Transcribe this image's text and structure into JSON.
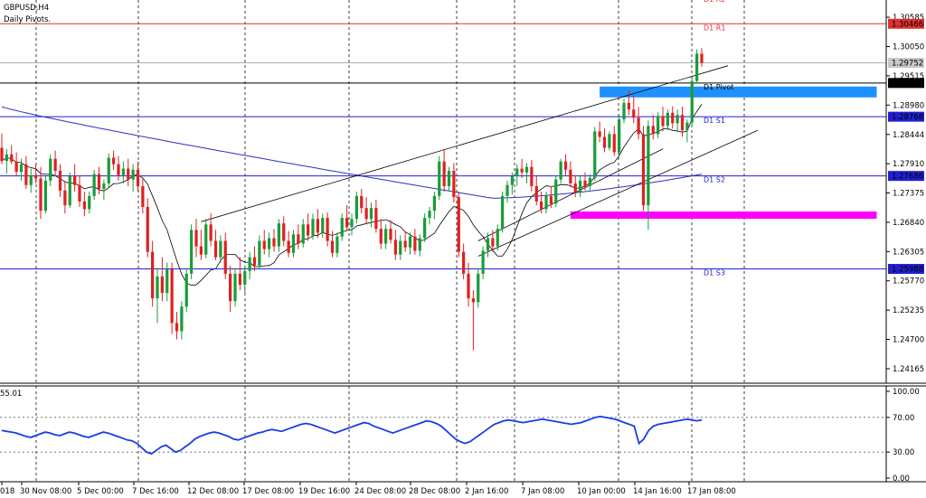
{
  "header": {
    "symbol": "GBPUSD,H4",
    "indicator_name": "Daily Pivots."
  },
  "oscillator": {
    "value_label": "55.01",
    "levels": [
      "100.00",
      "70.00",
      "30.00",
      "0.00"
    ]
  },
  "chart_data": {
    "type": "candlestick",
    "symbol": "GBPUSD",
    "timeframe": "H4",
    "ylim": [
      1.239,
      1.309
    ],
    "price_ticks": [
      "1.30585",
      "1.30050",
      "1.29515",
      "1.28980",
      "1.28444",
      "1.27910",
      "1.27375",
      "1.26840",
      "1.26305",
      "1.25770",
      "1.25235",
      "1.24700",
      "1.24165"
    ],
    "x_tick_labels": [
      "018",
      "30 Nov 08:00",
      "5 Dec 00:00",
      "7 Dec 16:00",
      "12 Dec 08:00",
      "17 Dec 08:00",
      "19 Dec 16:00",
      "24 Dec 08:00",
      "28 Dec 08:00",
      "2 Jan 16:00",
      "7 Jan 08:00",
      "10 Jan 00:00",
      "14 Jan 16:00",
      "17 Jan 08:00"
    ],
    "pivot_levels": [
      {
        "name": "D1 R2",
        "value": 1.3098,
        "price_label": "",
        "color": "#e03030"
      },
      {
        "name": "D1 R1",
        "value": 1.30466,
        "price_label": "1.30466",
        "color": "#e03030"
      },
      {
        "name": "D1 Pivot",
        "value": 1.29384,
        "price_label": "1.29384",
        "color": "#000000"
      },
      {
        "name": "D1 S1",
        "value": 1.28768,
        "price_label": "1.28768",
        "color": "#2020d0"
      },
      {
        "name": "D1 S2",
        "value": 1.27686,
        "price_label": "1.27686",
        "color": "#2020d0"
      },
      {
        "name": "D1 S3",
        "value": 1.25988,
        "price_label": "1.25988",
        "color": "#2020d0"
      }
    ],
    "current_price": {
      "value": 1.29752,
      "label": "1.29752"
    },
    "zones": [
      {
        "name": "resistance-zone",
        "color": "#1e90ff",
        "price": 1.2922,
        "from_index": 123,
        "to_index": 180
      },
      {
        "name": "support-zone",
        "color": "#ff00ff",
        "price": 1.2697,
        "from_index": 117,
        "to_index": 180
      }
    ],
    "candles": [
      {
        "o": 1.282,
        "h": 1.2846,
        "l": 1.279,
        "c": 1.2796
      },
      {
        "o": 1.2796,
        "h": 1.2818,
        "l": 1.2773,
        "c": 1.2808
      },
      {
        "o": 1.2808,
        "h": 1.2825,
        "l": 1.279,
        "c": 1.2795
      },
      {
        "o": 1.2795,
        "h": 1.2812,
        "l": 1.2768,
        "c": 1.2776
      },
      {
        "o": 1.2776,
        "h": 1.28,
        "l": 1.276,
        "c": 1.279
      },
      {
        "o": 1.279,
        "h": 1.2805,
        "l": 1.2745,
        "c": 1.2752
      },
      {
        "o": 1.2752,
        "h": 1.2782,
        "l": 1.2738,
        "c": 1.277
      },
      {
        "o": 1.277,
        "h": 1.279,
        "l": 1.2755,
        "c": 1.2764
      },
      {
        "o": 1.2764,
        "h": 1.2785,
        "l": 1.269,
        "c": 1.2705
      },
      {
        "o": 1.2705,
        "h": 1.277,
        "l": 1.27,
        "c": 1.276
      },
      {
        "o": 1.276,
        "h": 1.2808,
        "l": 1.275,
        "c": 1.28
      },
      {
        "o": 1.28,
        "h": 1.2815,
        "l": 1.277,
        "c": 1.2778
      },
      {
        "o": 1.2778,
        "h": 1.279,
        "l": 1.273,
        "c": 1.2742
      },
      {
        "o": 1.2742,
        "h": 1.276,
        "l": 1.27,
        "c": 1.2715
      },
      {
        "o": 1.2715,
        "h": 1.2775,
        "l": 1.271,
        "c": 1.2768
      },
      {
        "o": 1.2768,
        "h": 1.279,
        "l": 1.274,
        "c": 1.2752
      },
      {
        "o": 1.2752,
        "h": 1.277,
        "l": 1.2712,
        "c": 1.2722
      },
      {
        "o": 1.2722,
        "h": 1.274,
        "l": 1.2695,
        "c": 1.2708
      },
      {
        "o": 1.2708,
        "h": 1.274,
        "l": 1.27,
        "c": 1.2732
      },
      {
        "o": 1.2732,
        "h": 1.278,
        "l": 1.2725,
        "c": 1.2772
      },
      {
        "o": 1.2772,
        "h": 1.2785,
        "l": 1.2735,
        "c": 1.2745
      },
      {
        "o": 1.2745,
        "h": 1.2762,
        "l": 1.2725,
        "c": 1.2755
      },
      {
        "o": 1.2755,
        "h": 1.281,
        "l": 1.2748,
        "c": 1.2802
      },
      {
        "o": 1.2802,
        "h": 1.2815,
        "l": 1.278,
        "c": 1.279
      },
      {
        "o": 1.279,
        "h": 1.2805,
        "l": 1.276,
        "c": 1.277
      },
      {
        "o": 1.277,
        "h": 1.2795,
        "l": 1.2755,
        "c": 1.2782
      },
      {
        "o": 1.2782,
        "h": 1.28,
        "l": 1.275,
        "c": 1.2762
      },
      {
        "o": 1.2762,
        "h": 1.279,
        "l": 1.274,
        "c": 1.278
      },
      {
        "o": 1.278,
        "h": 1.2795,
        "l": 1.274,
        "c": 1.275
      },
      {
        "o": 1.275,
        "h": 1.2765,
        "l": 1.27,
        "c": 1.2712
      },
      {
        "o": 1.2712,
        "h": 1.2728,
        "l": 1.262,
        "c": 1.263
      },
      {
        "o": 1.263,
        "h": 1.265,
        "l": 1.253,
        "c": 1.2545
      },
      {
        "o": 1.2545,
        "h": 1.26,
        "l": 1.25,
        "c": 1.2585
      },
      {
        "o": 1.2585,
        "h": 1.262,
        "l": 1.254,
        "c": 1.2555
      },
      {
        "o": 1.2555,
        "h": 1.261,
        "l": 1.254,
        "c": 1.2598
      },
      {
        "o": 1.2598,
        "h": 1.261,
        "l": 1.248,
        "c": 1.25
      },
      {
        "o": 1.25,
        "h": 1.252,
        "l": 1.247,
        "c": 1.2485
      },
      {
        "o": 1.2485,
        "h": 1.254,
        "l": 1.247,
        "c": 1.253
      },
      {
        "o": 1.253,
        "h": 1.26,
        "l": 1.252,
        "c": 1.259
      },
      {
        "o": 1.259,
        "h": 1.268,
        "l": 1.258,
        "c": 1.267
      },
      {
        "o": 1.267,
        "h": 1.269,
        "l": 1.262,
        "c": 1.264
      },
      {
        "o": 1.264,
        "h": 1.267,
        "l": 1.2615,
        "c": 1.2625
      },
      {
        "o": 1.2625,
        "h": 1.269,
        "l": 1.2618,
        "c": 1.268
      },
      {
        "o": 1.268,
        "h": 1.27,
        "l": 1.264,
        "c": 1.265
      },
      {
        "o": 1.265,
        "h": 1.267,
        "l": 1.2615,
        "c": 1.262
      },
      {
        "o": 1.262,
        "h": 1.266,
        "l": 1.261,
        "c": 1.265
      },
      {
        "o": 1.265,
        "h": 1.2665,
        "l": 1.258,
        "c": 1.259
      },
      {
        "o": 1.259,
        "h": 1.2605,
        "l": 1.252,
        "c": 1.254
      },
      {
        "o": 1.254,
        "h": 1.26,
        "l": 1.253,
        "c": 1.259
      },
      {
        "o": 1.259,
        "h": 1.262,
        "l": 1.256,
        "c": 1.257
      },
      {
        "o": 1.257,
        "h": 1.2605,
        "l": 1.2555,
        "c": 1.2595
      },
      {
        "o": 1.2595,
        "h": 1.263,
        "l": 1.258,
        "c": 1.262
      },
      {
        "o": 1.262,
        "h": 1.264,
        "l": 1.2595,
        "c": 1.2605
      },
      {
        "o": 1.2605,
        "h": 1.266,
        "l": 1.2598,
        "c": 1.265
      },
      {
        "o": 1.265,
        "h": 1.267,
        "l": 1.2625,
        "c": 1.2635
      },
      {
        "o": 1.2635,
        "h": 1.2665,
        "l": 1.262,
        "c": 1.2655
      },
      {
        "o": 1.2655,
        "h": 1.2672,
        "l": 1.263,
        "c": 1.264
      },
      {
        "o": 1.264,
        "h": 1.269,
        "l": 1.263,
        "c": 1.2682
      },
      {
        "o": 1.2682,
        "h": 1.2695,
        "l": 1.264,
        "c": 1.265
      },
      {
        "o": 1.265,
        "h": 1.2668,
        "l": 1.262,
        "c": 1.2628
      },
      {
        "o": 1.2628,
        "h": 1.267,
        "l": 1.262,
        "c": 1.2662
      },
      {
        "o": 1.2662,
        "h": 1.268,
        "l": 1.2635,
        "c": 1.2645
      },
      {
        "o": 1.2645,
        "h": 1.269,
        "l": 1.2638,
        "c": 1.268
      },
      {
        "o": 1.268,
        "h": 1.27,
        "l": 1.265,
        "c": 1.266
      },
      {
        "o": 1.266,
        "h": 1.27,
        "l": 1.2652,
        "c": 1.269
      },
      {
        "o": 1.269,
        "h": 1.2708,
        "l": 1.2655,
        "c": 1.2665
      },
      {
        "o": 1.2665,
        "h": 1.27,
        "l": 1.2655,
        "c": 1.2692
      },
      {
        "o": 1.2692,
        "h": 1.2702,
        "l": 1.264,
        "c": 1.265
      },
      {
        "o": 1.265,
        "h": 1.2668,
        "l": 1.262,
        "c": 1.2628
      },
      {
        "o": 1.2628,
        "h": 1.2665,
        "l": 1.262,
        "c": 1.2658
      },
      {
        "o": 1.2658,
        "h": 1.27,
        "l": 1.265,
        "c": 1.2692
      },
      {
        "o": 1.2692,
        "h": 1.2715,
        "l": 1.2668,
        "c": 1.2675
      },
      {
        "o": 1.2675,
        "h": 1.27,
        "l": 1.266,
        "c": 1.269
      },
      {
        "o": 1.269,
        "h": 1.274,
        "l": 1.2682,
        "c": 1.2732
      },
      {
        "o": 1.2732,
        "h": 1.2745,
        "l": 1.27,
        "c": 1.271
      },
      {
        "o": 1.271,
        "h": 1.273,
        "l": 1.268,
        "c": 1.269
      },
      {
        "o": 1.269,
        "h": 1.272,
        "l": 1.2675,
        "c": 1.271
      },
      {
        "o": 1.271,
        "h": 1.2725,
        "l": 1.2665,
        "c": 1.2672
      },
      {
        "o": 1.2672,
        "h": 1.269,
        "l": 1.2635,
        "c": 1.2645
      },
      {
        "o": 1.2645,
        "h": 1.268,
        "l": 1.2635,
        "c": 1.2672
      },
      {
        "o": 1.2672,
        "h": 1.2688,
        "l": 1.2645,
        "c": 1.2652
      },
      {
        "o": 1.2652,
        "h": 1.267,
        "l": 1.2615,
        "c": 1.2625
      },
      {
        "o": 1.2625,
        "h": 1.266,
        "l": 1.2615,
        "c": 1.265
      },
      {
        "o": 1.265,
        "h": 1.2668,
        "l": 1.263,
        "c": 1.2638
      },
      {
        "o": 1.2638,
        "h": 1.2665,
        "l": 1.2625,
        "c": 1.2658
      },
      {
        "o": 1.2658,
        "h": 1.2672,
        "l": 1.2625,
        "c": 1.2632
      },
      {
        "o": 1.2632,
        "h": 1.2662,
        "l": 1.2622,
        "c": 1.2655
      },
      {
        "o": 1.2655,
        "h": 1.27,
        "l": 1.2648,
        "c": 1.2692
      },
      {
        "o": 1.2692,
        "h": 1.2712,
        "l": 1.268,
        "c": 1.2705
      },
      {
        "o": 1.2705,
        "h": 1.274,
        "l": 1.269,
        "c": 1.2732
      },
      {
        "o": 1.2732,
        "h": 1.2805,
        "l": 1.2725,
        "c": 1.2795
      },
      {
        "o": 1.2795,
        "h": 1.2818,
        "l": 1.274,
        "c": 1.275
      },
      {
        "o": 1.275,
        "h": 1.2785,
        "l": 1.274,
        "c": 1.2778
      },
      {
        "o": 1.2778,
        "h": 1.2792,
        "l": 1.272,
        "c": 1.273
      },
      {
        "o": 1.273,
        "h": 1.274,
        "l": 1.262,
        "c": 1.263
      },
      {
        "o": 1.263,
        "h": 1.2645,
        "l": 1.258,
        "c": 1.259
      },
      {
        "o": 1.259,
        "h": 1.261,
        "l": 1.253,
        "c": 1.2545
      },
      {
        "o": 1.2545,
        "h": 1.256,
        "l": 1.245,
        "c": 1.2538
      },
      {
        "o": 1.2538,
        "h": 1.26,
        "l": 1.2528,
        "c": 1.259
      },
      {
        "o": 1.259,
        "h": 1.264,
        "l": 1.258,
        "c": 1.2632
      },
      {
        "o": 1.2632,
        "h": 1.2665,
        "l": 1.262,
        "c": 1.2655
      },
      {
        "o": 1.2655,
        "h": 1.267,
        "l": 1.263,
        "c": 1.264
      },
      {
        "o": 1.264,
        "h": 1.268,
        "l": 1.2632,
        "c": 1.2672
      },
      {
        "o": 1.2672,
        "h": 1.274,
        "l": 1.2665,
        "c": 1.2732
      },
      {
        "o": 1.2732,
        "h": 1.276,
        "l": 1.272,
        "c": 1.2752
      },
      {
        "o": 1.2752,
        "h": 1.2775,
        "l": 1.2735,
        "c": 1.2768
      },
      {
        "o": 1.2768,
        "h": 1.279,
        "l": 1.275,
        "c": 1.2782
      },
      {
        "o": 1.2782,
        "h": 1.28,
        "l": 1.2765,
        "c": 1.2775
      },
      {
        "o": 1.2775,
        "h": 1.2792,
        "l": 1.2755,
        "c": 1.2785
      },
      {
        "o": 1.2785,
        "h": 1.2798,
        "l": 1.274,
        "c": 1.275
      },
      {
        "o": 1.275,
        "h": 1.277,
        "l": 1.2715,
        "c": 1.2722
      },
      {
        "o": 1.2722,
        "h": 1.274,
        "l": 1.27,
        "c": 1.2708
      },
      {
        "o": 1.2708,
        "h": 1.274,
        "l": 1.27,
        "c": 1.2732
      },
      {
        "o": 1.2732,
        "h": 1.275,
        "l": 1.271,
        "c": 1.2718
      },
      {
        "o": 1.2718,
        "h": 1.277,
        "l": 1.2712,
        "c": 1.2762
      },
      {
        "o": 1.2762,
        "h": 1.28,
        "l": 1.2755,
        "c": 1.2795
      },
      {
        "o": 1.2795,
        "h": 1.2808,
        "l": 1.277,
        "c": 1.278
      },
      {
        "o": 1.278,
        "h": 1.2795,
        "l": 1.2748,
        "c": 1.2755
      },
      {
        "o": 1.2755,
        "h": 1.277,
        "l": 1.273,
        "c": 1.2738
      },
      {
        "o": 1.2738,
        "h": 1.2768,
        "l": 1.273,
        "c": 1.276
      },
      {
        "o": 1.276,
        "h": 1.2775,
        "l": 1.2742,
        "c": 1.275
      },
      {
        "o": 1.275,
        "h": 1.2772,
        "l": 1.274,
        "c": 1.2765
      },
      {
        "o": 1.2765,
        "h": 1.2858,
        "l": 1.276,
        "c": 1.285
      },
      {
        "o": 1.285,
        "h": 1.2868,
        "l": 1.283,
        "c": 1.284
      },
      {
        "o": 1.284,
        "h": 1.2855,
        "l": 1.2812,
        "c": 1.282
      },
      {
        "o": 1.282,
        "h": 1.285,
        "l": 1.2815,
        "c": 1.2845
      },
      {
        "o": 1.2845,
        "h": 1.286,
        "l": 1.2805,
        "c": 1.2812
      },
      {
        "o": 1.2812,
        "h": 1.288,
        "l": 1.2806,
        "c": 1.2872
      },
      {
        "o": 1.2872,
        "h": 1.291,
        "l": 1.2865,
        "c": 1.2902
      },
      {
        "o": 1.2902,
        "h": 1.2925,
        "l": 1.288,
        "c": 1.289
      },
      {
        "o": 1.289,
        "h": 1.2915,
        "l": 1.2865,
        "c": 1.2875
      },
      {
        "o": 1.2875,
        "h": 1.2895,
        "l": 1.2835,
        "c": 1.2845
      },
      {
        "o": 1.2845,
        "h": 1.286,
        "l": 1.2705,
        "c": 1.2715
      },
      {
        "o": 1.2715,
        "h": 1.287,
        "l": 1.267,
        "c": 1.286
      },
      {
        "o": 1.286,
        "h": 1.288,
        "l": 1.2835,
        "c": 1.2845
      },
      {
        "o": 1.2845,
        "h": 1.2885,
        "l": 1.2838,
        "c": 1.2878
      },
      {
        "o": 1.2878,
        "h": 1.2895,
        "l": 1.285,
        "c": 1.286
      },
      {
        "o": 1.286,
        "h": 1.289,
        "l": 1.2852,
        "c": 1.2884
      },
      {
        "o": 1.2884,
        "h": 1.2896,
        "l": 1.2855,
        "c": 1.2865
      },
      {
        "o": 1.2865,
        "h": 1.289,
        "l": 1.2848,
        "c": 1.288
      },
      {
        "o": 1.288,
        "h": 1.2895,
        "l": 1.284,
        "c": 1.2852
      },
      {
        "o": 1.2852,
        "h": 1.2872,
        "l": 1.283,
        "c": 1.2866
      },
      {
        "o": 1.2866,
        "h": 1.295,
        "l": 1.286,
        "c": 1.2942
      },
      {
        "o": 1.2942,
        "h": 1.3,
        "l": 1.2938,
        "c": 1.2992
      },
      {
        "o": 1.2992,
        "h": 1.3002,
        "l": 1.2968,
        "c": 1.2975
      }
    ],
    "oscillator_values": [
      55,
      54,
      53,
      52,
      50,
      48,
      47,
      49,
      51,
      53,
      52,
      50,
      49,
      51,
      53,
      52,
      50,
      48,
      47,
      49,
      51,
      53,
      52,
      50,
      48,
      46,
      44,
      43,
      40,
      35,
      30,
      28,
      32,
      36,
      38,
      34,
      30,
      32,
      36,
      40,
      45,
      48,
      50,
      52,
      53,
      52,
      50,
      48,
      45,
      44,
      46,
      48,
      50,
      52,
      53,
      55,
      56,
      55,
      54,
      56,
      58,
      60,
      62,
      63,
      62,
      60,
      58,
      56,
      54,
      52,
      54,
      56,
      58,
      60,
      62,
      64,
      63,
      60,
      58,
      56,
      54,
      52,
      54,
      56,
      58,
      60,
      62,
      64,
      66,
      65,
      63,
      60,
      55,
      50,
      45,
      42,
      40,
      42,
      46,
      50,
      54,
      58,
      62,
      64,
      66,
      67,
      66,
      65,
      64,
      65,
      66,
      67,
      68,
      67,
      66,
      65,
      64,
      63,
      62,
      63,
      64,
      66,
      68,
      70,
      71,
      70,
      69,
      68,
      66,
      64,
      62,
      60,
      40,
      45,
      55,
      60,
      62,
      63,
      64,
      65,
      66,
      67,
      68,
      67,
      66,
      67
    ]
  }
}
